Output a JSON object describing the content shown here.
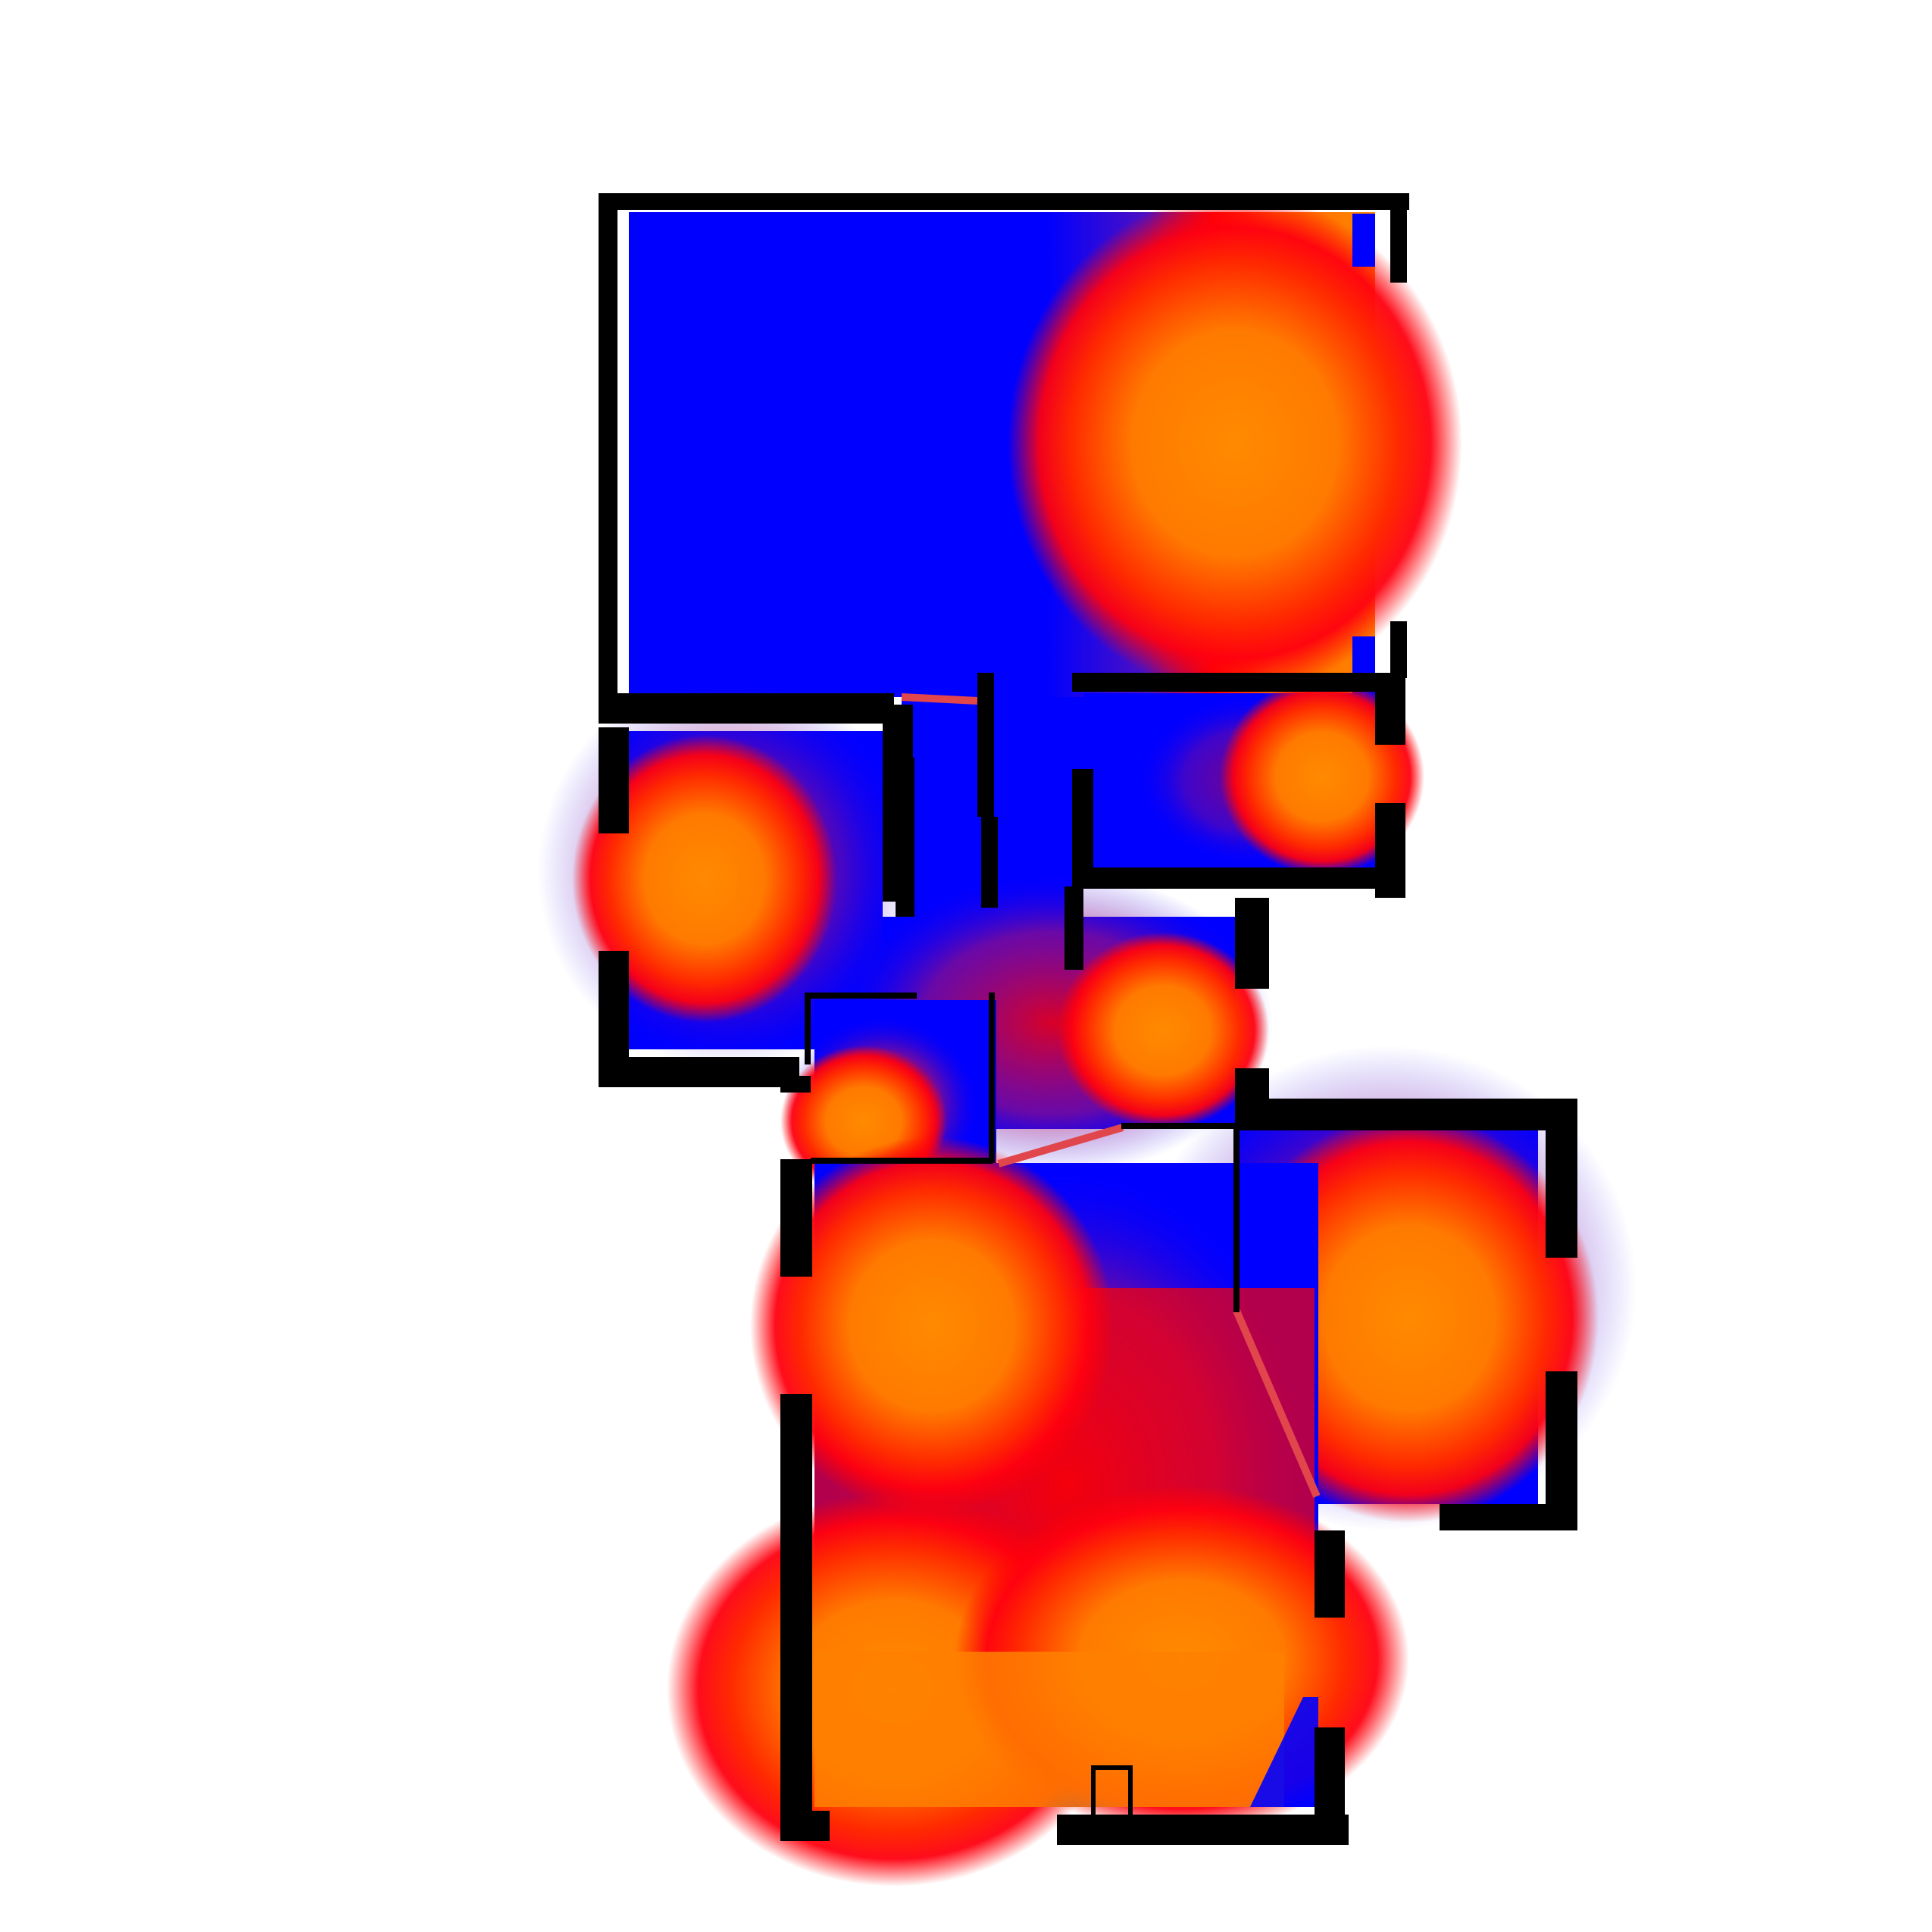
{
  "map": {
    "type": "floorplan-coverage-heatmap",
    "title": "",
    "labels_present": false,
    "colors": {
      "background": "#ffffff",
      "low": "#0000ff",
      "mid": "#ff0000",
      "high": "#ff8a00",
      "wall": "#000000",
      "door": "#e0464b"
    },
    "rooms": [
      {
        "name": "top-large-room",
        "hotspots": 1
      },
      {
        "name": "upper-right-room",
        "hotspots": 1
      },
      {
        "name": "left-room",
        "hotspots": 1
      },
      {
        "name": "central-hall",
        "hotspots": 1
      },
      {
        "name": "small-middle-room",
        "hotspots": 1
      },
      {
        "name": "right-room",
        "hotspots": 1
      },
      {
        "name": "bottom-large-room",
        "hotspots": 3
      }
    ]
  }
}
